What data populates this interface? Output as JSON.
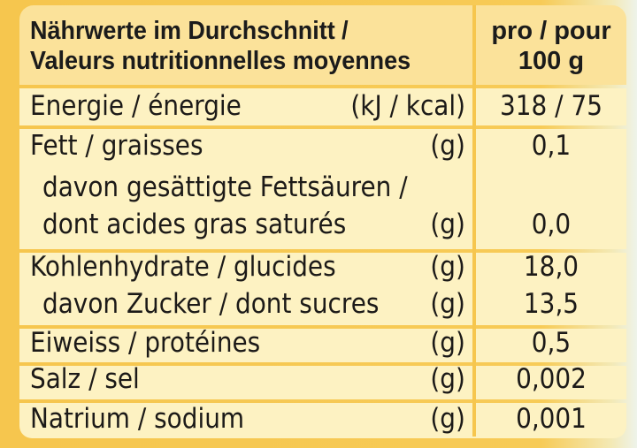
{
  "header": {
    "title_de": "Nährwerte im Durchschnitt /",
    "title_fr": "Valeurs nutritionnelles moyennes",
    "per_label": "pro / pour",
    "per_amount": "100 g"
  },
  "rows": [
    {
      "label": "Energie / énergie",
      "unit": "(kJ / kcal)",
      "value": "318 / 75"
    },
    {
      "label": "Fett / graisses",
      "unit": "(g)",
      "value": "0,1"
    },
    {
      "label_line1": "davon gesättigte Fettsäuren /",
      "label_line2": "dont acides gras saturés",
      "unit": "(g)",
      "value": "0,0"
    },
    {
      "label_line1": "Kohlenhydrate / glucides",
      "unit1": "(g)",
      "value1": "18,0",
      "label_line2": "davon Zucker / dont sucres",
      "unit2": "(g)",
      "value2": "13,5"
    },
    {
      "label": "Eiweiss / protéines",
      "unit": "(g)",
      "value": "0,5"
    },
    {
      "label": "Salz / sel",
      "unit": "(g)",
      "value": "0,002"
    },
    {
      "label": "Natrium / sodium",
      "unit": "(g)",
      "value": "0,001"
    }
  ]
}
